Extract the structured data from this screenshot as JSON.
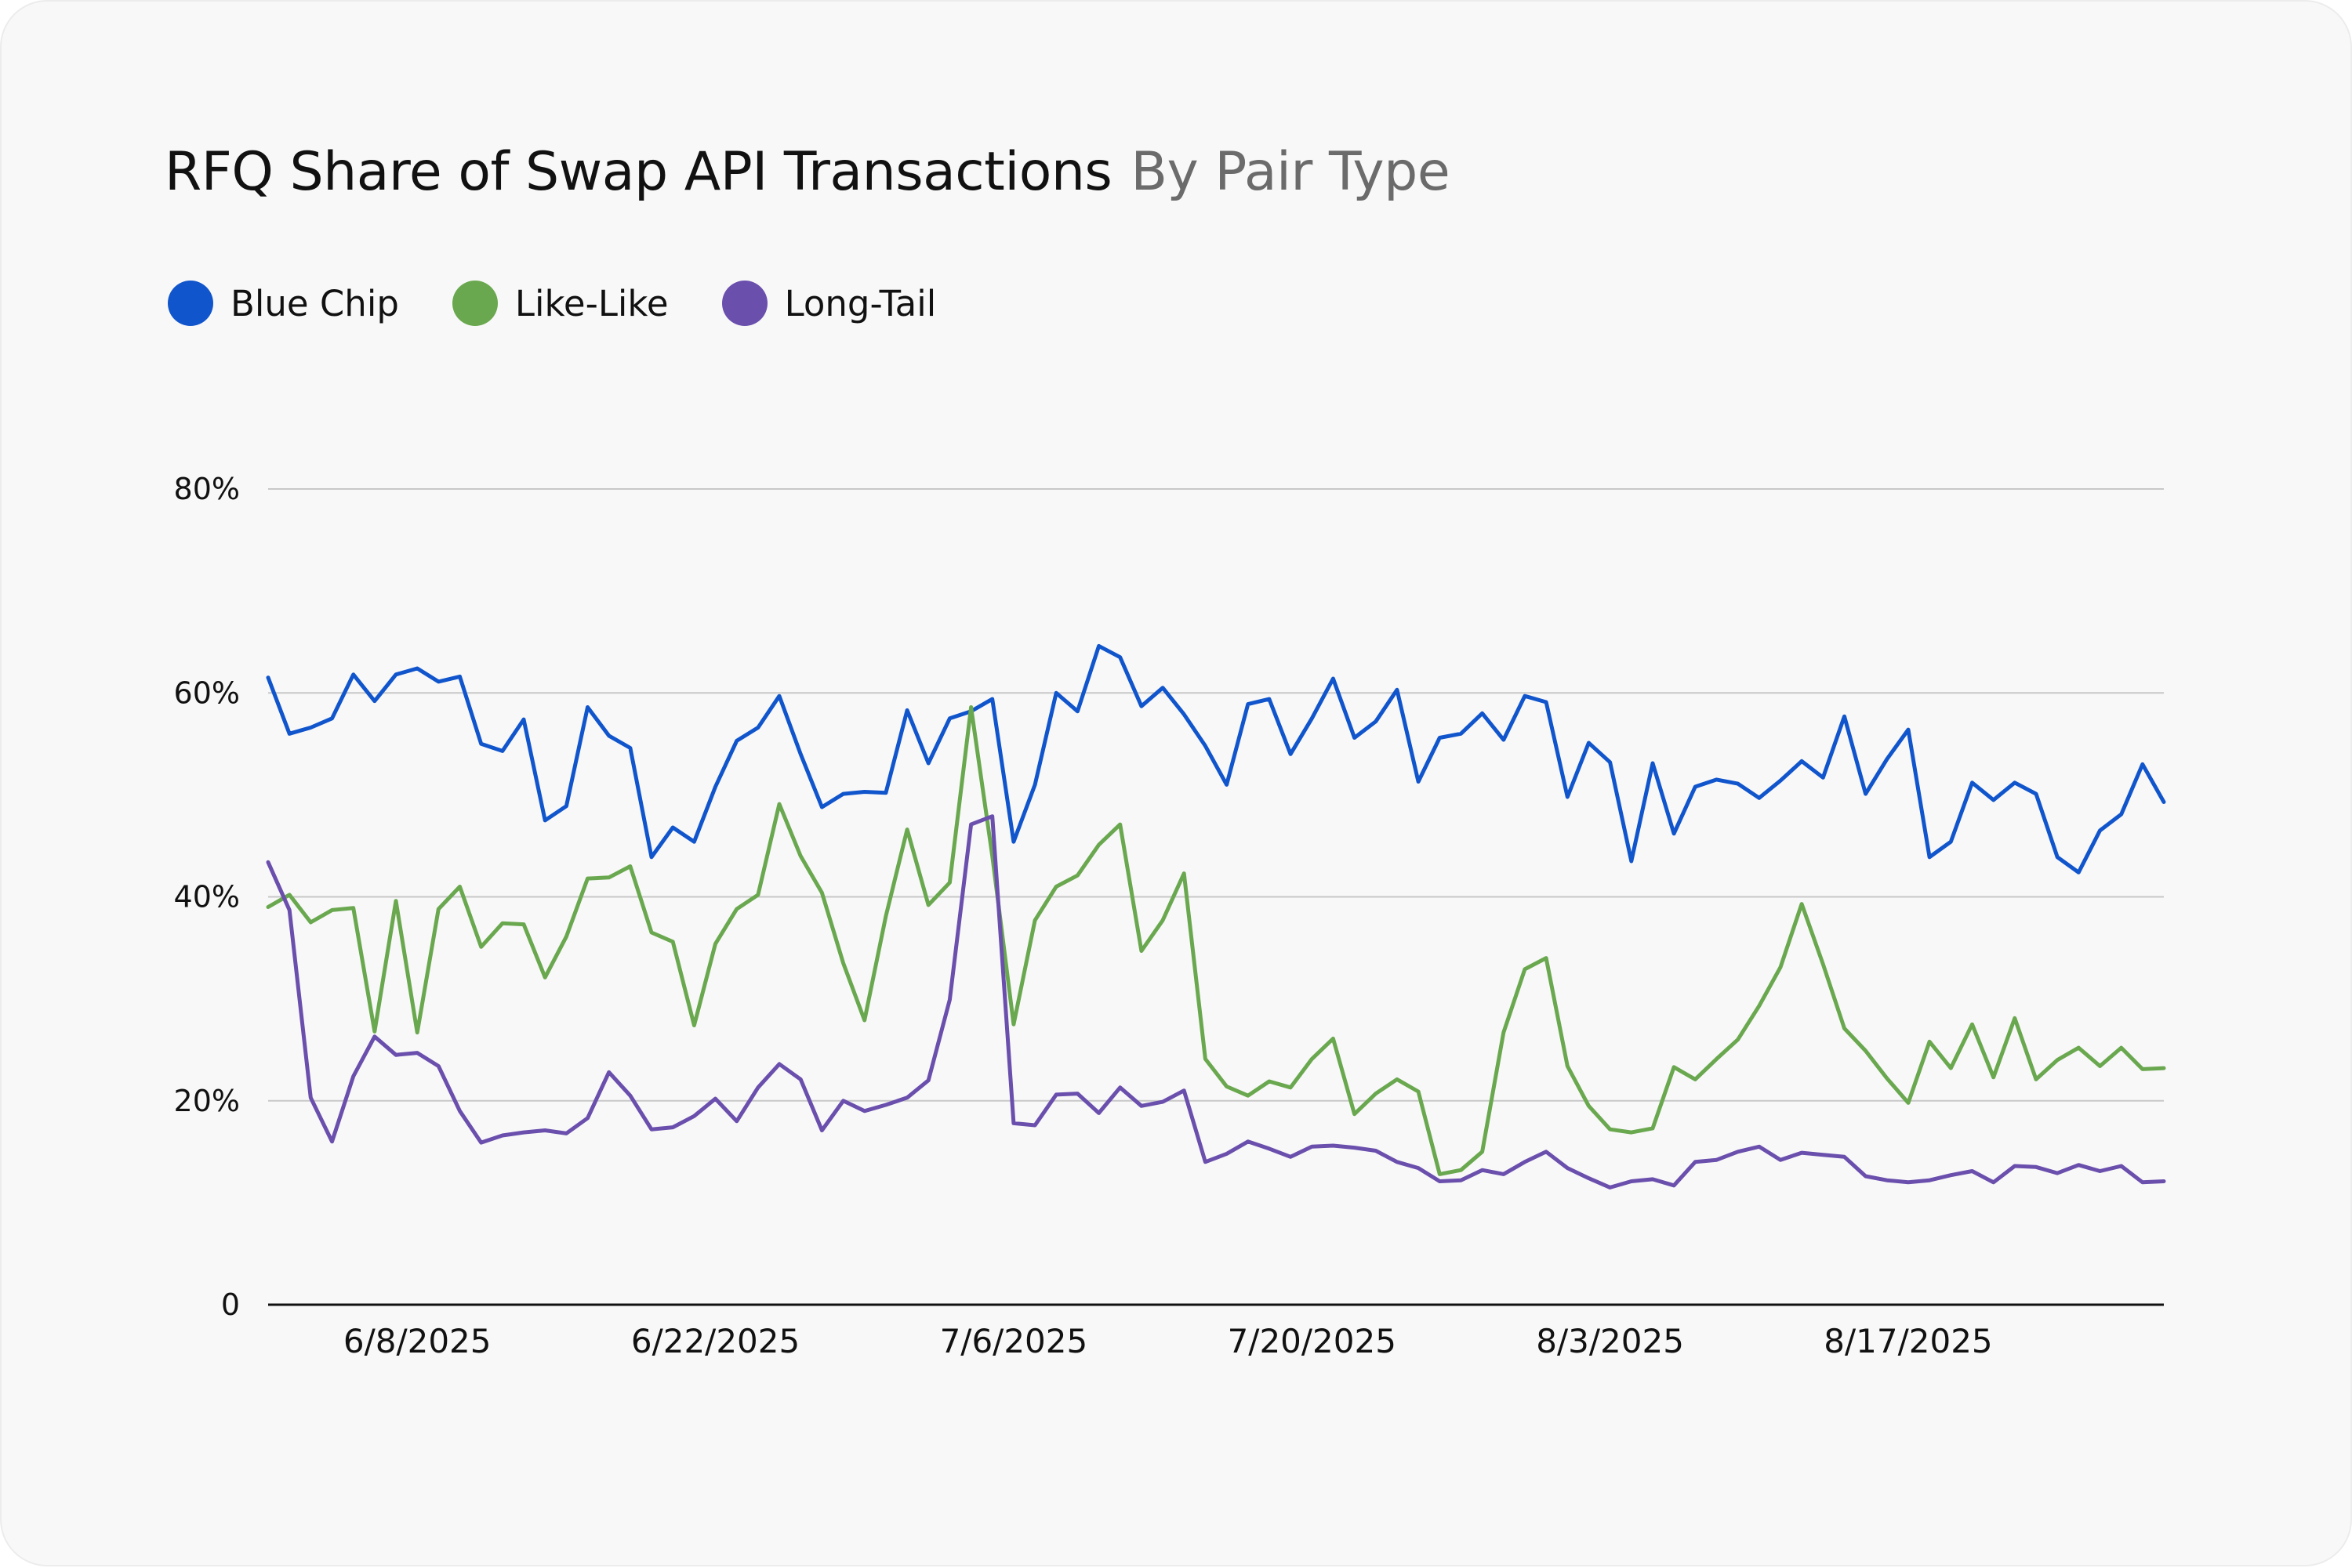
{
  "chart_data": {
    "type": "line",
    "title": "RFQ Share of Swap API Transactions",
    "subtitle": "By Pair Type",
    "xlabel": "",
    "ylabel": "",
    "ylim": [
      0,
      80
    ],
    "yticks": [
      0,
      20,
      40,
      60,
      80
    ],
    "ytick_labels": [
      "0",
      "20%",
      "40%",
      "60%",
      "80%"
    ],
    "grid": true,
    "legend_position": "top-left",
    "x_start": "6/1/2025",
    "x_end": "8/29/2025",
    "xtick_labels": [
      "6/8/2025",
      "6/22/2025",
      "7/6/2025",
      "7/20/2025",
      "8/3/2025",
      "8/17/2025"
    ],
    "series": [
      {
        "name": "Blue Chip",
        "color": "#1155cc",
        "values": [
          61.5,
          56.0,
          56.6,
          57.5,
          61.8,
          59.2,
          61.8,
          62.4,
          61.1,
          61.6,
          55.0,
          54.3,
          57.4,
          47.5,
          48.9,
          58.6,
          55.8,
          54.6,
          43.9,
          46.8,
          45.4,
          50.8,
          55.3,
          56.6,
          59.7,
          54.0,
          48.8,
          50.1,
          50.3,
          50.2,
          58.3,
          53.1,
          57.5,
          58.2,
          59.4,
          45.4,
          51.0,
          60.0,
          58.2,
          64.6,
          63.5,
          58.7,
          60.5,
          57.9,
          54.8,
          51.0,
          58.9,
          59.4,
          54.0,
          57.5,
          61.4,
          55.6,
          57.2,
          60.3,
          51.3,
          55.6,
          56.0,
          58.0,
          55.4,
          59.7,
          59.1,
          49.8,
          55.1,
          53.2,
          43.5,
          53.1,
          46.2,
          50.8,
          51.5,
          51.1,
          49.7,
          51.4,
          53.3,
          51.7,
          57.7,
          50.1,
          53.5,
          56.4,
          43.9,
          45.4,
          51.2,
          49.5,
          51.2,
          50.1,
          43.9,
          42.4,
          46.5,
          48.1,
          53.0,
          49.3
        ]
      },
      {
        "name": "Like-Like",
        "color": "#6aa84f",
        "values": [
          39.0,
          40.2,
          37.5,
          38.7,
          38.9,
          26.8,
          39.6,
          26.7,
          38.8,
          41.0,
          35.1,
          37.4,
          37.3,
          32.1,
          36.1,
          41.8,
          41.9,
          43.0,
          36.5,
          35.6,
          27.4,
          35.4,
          38.8,
          40.2,
          49.1,
          44.0,
          40.4,
          33.5,
          27.9,
          38.1,
          46.6,
          39.2,
          41.4,
          58.6,
          44.0,
          27.5,
          37.7,
          41.0,
          42.1,
          45.1,
          47.1,
          34.7,
          37.7,
          42.3,
          24.1,
          21.4,
          20.5,
          21.9,
          21.3,
          24.1,
          26.1,
          18.7,
          20.7,
          22.1,
          20.9,
          12.8,
          13.2,
          15.0,
          26.7,
          32.9,
          34.0,
          23.4,
          19.5,
          17.2,
          16.9,
          17.3,
          23.3,
          22.1,
          24.1,
          26.0,
          29.3,
          33.1,
          39.3,
          33.4,
          27.1,
          24.9,
          22.2,
          19.8,
          25.8,
          23.2,
          27.5,
          22.3,
          28.1,
          22.1,
          24.0,
          25.2,
          23.4,
          25.2,
          23.1,
          23.2
        ]
      },
      {
        "name": "Long-Tail",
        "color": "#6a4fad",
        "values": [
          43.4,
          38.7,
          20.3,
          16.0,
          22.4,
          26.3,
          24.5,
          24.7,
          23.4,
          19.0,
          15.9,
          16.6,
          16.9,
          17.1,
          16.8,
          18.3,
          22.8,
          20.5,
          17.2,
          17.4,
          18.5,
          20.2,
          18.0,
          21.3,
          23.6,
          22.1,
          17.1,
          20.0,
          19.0,
          19.6,
          20.3,
          22.0,
          29.9,
          47.1,
          47.9,
          17.8,
          17.6,
          20.6,
          20.7,
          18.8,
          21.3,
          19.5,
          19.9,
          21.0,
          14.0,
          14.8,
          16.0,
          15.3,
          14.5,
          15.5,
          15.6,
          15.4,
          15.1,
          14.0,
          13.4,
          12.1,
          12.2,
          13.2,
          12.8,
          14.0,
          15.0,
          13.4,
          12.4,
          11.5,
          12.1,
          12.3,
          11.7,
          14.0,
          14.2,
          15.0,
          15.5,
          14.2,
          14.9,
          14.7,
          14.5,
          12.6,
          12.2,
          12.0,
          12.2,
          12.7,
          13.1,
          12.0,
          13.6,
          13.5,
          12.9,
          13.7,
          13.1,
          13.6,
          12.0,
          12.1
        ]
      }
    ]
  }
}
